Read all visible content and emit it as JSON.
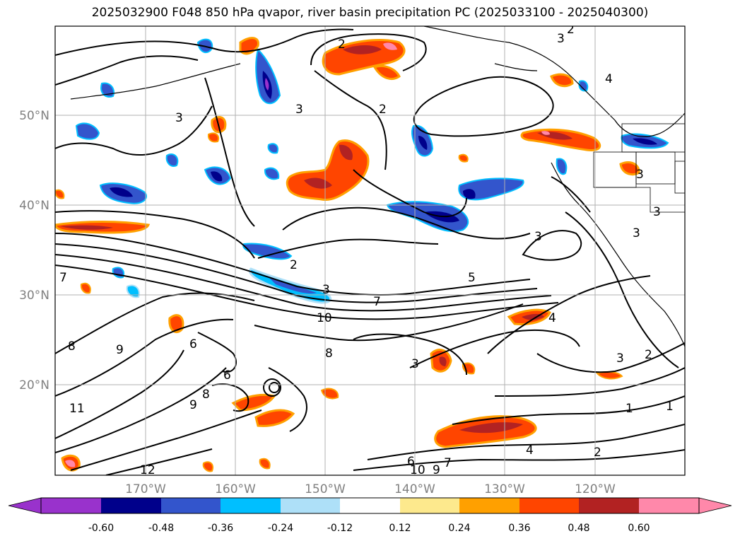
{
  "title": "2025032900 F048 850 hPa qvapor, river basin precipitation PC (2025033100 - 2025040300)",
  "map": {
    "lat_labels": [
      "50°N",
      "40°N",
      "30°N",
      "20°N"
    ],
    "lon_labels": [
      "170°W",
      "160°W",
      "150°W",
      "140°W",
      "130°W",
      "120°W"
    ],
    "gridlines": true,
    "extent": {
      "lon": [
        -180,
        -110
      ],
      "lat": [
        10,
        60
      ]
    },
    "contour_labels": [
      "2",
      "2",
      "2",
      "2",
      "2",
      "2",
      "3",
      "3",
      "3",
      "3",
      "3",
      "3",
      "3",
      "3",
      "3",
      "3",
      "4",
      "4",
      "4",
      "5",
      "6",
      "6",
      "6",
      "7",
      "7",
      "7",
      "8",
      "8",
      "8",
      "9",
      "9",
      "9",
      "10",
      "10",
      "11",
      "12",
      "1",
      "1"
    ]
  },
  "colorbar": {
    "ticks": [
      "-0.60",
      "-0.48",
      "-0.36",
      "-0.24",
      "-0.12",
      "0.12",
      "0.24",
      "0.36",
      "0.48",
      "0.60"
    ],
    "colors": [
      "#9932cc",
      "#00008b",
      "#3355cc",
      "#00bfff",
      "#aee0f8",
      "#ffffff",
      "#fde98d",
      "#ffa000",
      "#ff4500",
      "#b22222",
      "#ff88aa"
    ],
    "extend": "both"
  },
  "palette": {
    "deep_purple": "#9932cc",
    "navy": "#00008b",
    "blue": "#3355cc",
    "cyan": "#00bfff",
    "light_blue": "#aee0f8",
    "yellow": "#fde98d",
    "orange": "#ffa000",
    "red_orange": "#ff4500",
    "dark_red": "#b22222",
    "pink": "#ff88aa",
    "axis_label": "#808080"
  }
}
